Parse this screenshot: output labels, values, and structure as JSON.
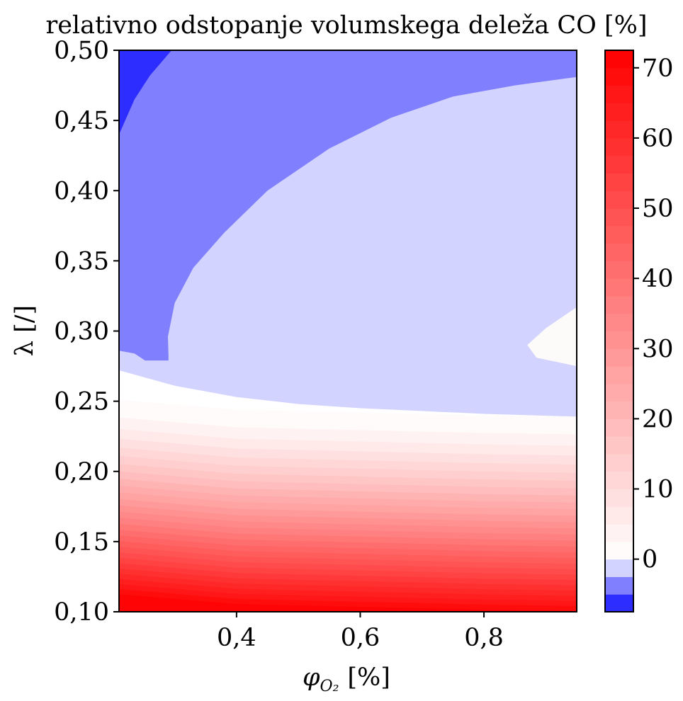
{
  "chart_data": {
    "type": "heatmap",
    "subtype": "filled-contour",
    "title": "relativno odstopanje volumskega deleža CO [%]",
    "xlabel": "φ_{O₂} [%]",
    "xlabel_main": "φ",
    "xlabel_sub": "O₂",
    "xlabel_unit": "[%]",
    "ylabel": "λ [/]",
    "xlim": [
      0.21,
      0.95
    ],
    "ylim": [
      0.1,
      0.5
    ],
    "x_ticks": [
      {
        "value": 0.4,
        "label": "0,4"
      },
      {
        "value": 0.6,
        "label": "0,6"
      },
      {
        "value": 0.8,
        "label": "0,8"
      }
    ],
    "y_ticks": [
      {
        "value": 0.1,
        "label": "0,10"
      },
      {
        "value": 0.15,
        "label": "0,15"
      },
      {
        "value": 0.2,
        "label": "0,20"
      },
      {
        "value": 0.25,
        "label": "0,25"
      },
      {
        "value": 0.3,
        "label": "0,30"
      },
      {
        "value": 0.35,
        "label": "0,35"
      },
      {
        "value": 0.4,
        "label": "0,40"
      },
      {
        "value": 0.45,
        "label": "0,45"
      },
      {
        "value": 0.5,
        "label": "0,50"
      }
    ],
    "colorbar": {
      "colormap": "bwr",
      "neg_levels": [
        {
          "from": -7.5,
          "to": -5,
          "color": "#2d2dff"
        },
        {
          "from": -5,
          "to": -2.5,
          "color": "#8080ff"
        },
        {
          "from": -2.5,
          "to": 0,
          "color": "#d3d3ff"
        }
      ],
      "pos_min": 0,
      "pos_max": 72.5,
      "pos_step": 2.5,
      "ticks": [
        {
          "value": 0,
          "label": "0"
        },
        {
          "value": 10,
          "label": "10"
        },
        {
          "value": 20,
          "label": "20"
        },
        {
          "value": 30,
          "label": "30"
        },
        {
          "value": 40,
          "label": "40"
        },
        {
          "value": 50,
          "label": "50"
        },
        {
          "value": 60,
          "label": "60"
        },
        {
          "value": 70,
          "label": "70"
        }
      ]
    },
    "regions": {
      "deep_blue": {
        "level_min": -7.5,
        "level_max": -5,
        "color": "#2d2dff",
        "boundary": [
          [
            0.21,
            0.44
          ],
          [
            0.235,
            0.465
          ],
          [
            0.26,
            0.482
          ],
          [
            0.295,
            0.5
          ]
        ]
      },
      "mid_blue": {
        "level_min": -5,
        "level_max": -2.5,
        "color": "#8080ff",
        "boundary": [
          [
            0.21,
            0.286
          ],
          [
            0.235,
            0.284
          ],
          [
            0.252,
            0.279
          ],
          [
            0.29,
            0.279
          ],
          [
            0.29,
            0.283
          ],
          [
            0.289,
            0.296
          ],
          [
            0.3,
            0.32
          ],
          [
            0.33,
            0.345
          ],
          [
            0.38,
            0.37
          ],
          [
            0.45,
            0.4
          ],
          [
            0.55,
            0.43
          ],
          [
            0.65,
            0.452
          ],
          [
            0.75,
            0.467
          ],
          [
            0.85,
            0.475
          ],
          [
            0.95,
            0.481
          ]
        ]
      },
      "light_blue": {
        "level_min": -2.5,
        "level_max": 0,
        "color": "#d3d3ff",
        "boundary": [
          [
            0.21,
            0.272
          ],
          [
            0.3,
            0.261
          ],
          [
            0.4,
            0.253
          ],
          [
            0.5,
            0.248
          ],
          [
            0.6,
            0.245
          ],
          [
            0.7,
            0.243
          ],
          [
            0.8,
            0.241
          ],
          [
            0.95,
            0.239
          ]
        ]
      },
      "white_island": {
        "level_min": 0,
        "level_max": 2.5,
        "color": "#fdfafa",
        "boundary": [
          [
            0.95,
            0.317
          ],
          [
            0.9,
            0.302
          ],
          [
            0.87,
            0.29
          ],
          [
            0.885,
            0.281
          ],
          [
            0.95,
            0.275
          ]
        ]
      }
    }
  }
}
